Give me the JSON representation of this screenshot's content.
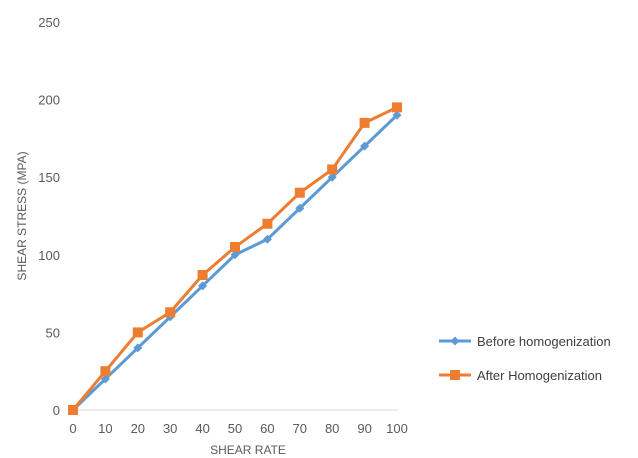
{
  "chart_data": {
    "type": "line",
    "title": "",
    "xlabel": "SHEAR RATE",
    "ylabel": "SHEAR STRESS (MPA)",
    "x": [
      0,
      10,
      20,
      30,
      40,
      50,
      60,
      70,
      80,
      90,
      100
    ],
    "x_ticks": [
      "0",
      "10",
      "20",
      "30",
      "40",
      "50",
      "60",
      "70",
      "80",
      "90",
      "100"
    ],
    "y_ticks": [
      "0",
      "50",
      "100",
      "150",
      "200",
      "250"
    ],
    "xlim": [
      0,
      100
    ],
    "ylim": [
      0,
      250
    ],
    "grid": false,
    "legend_position": "right",
    "series": [
      {
        "name": "Before homogenization",
        "color": "#5b9bd5",
        "marker": "diamond",
        "values": [
          0,
          20,
          40,
          60,
          80,
          100,
          110,
          130,
          150,
          170,
          190
        ]
      },
      {
        "name": "After Homogenization",
        "color": "#ed7d31",
        "marker": "square",
        "values": [
          0,
          25,
          50,
          63,
          87,
          105,
          120,
          140,
          155,
          185,
          195
        ]
      }
    ]
  }
}
